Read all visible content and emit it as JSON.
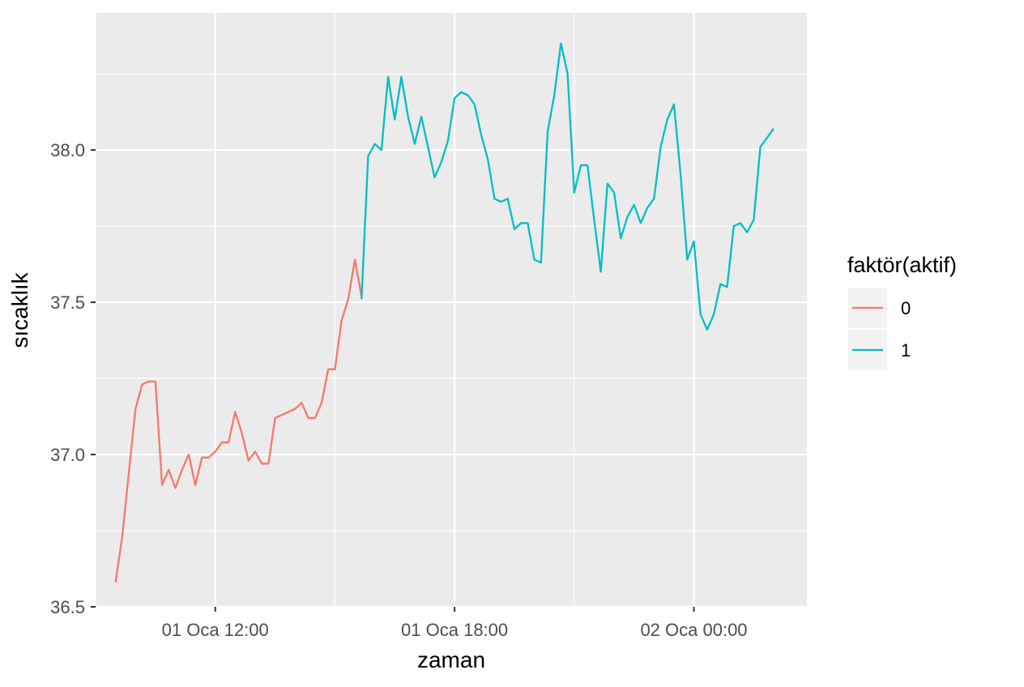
{
  "chart_data": {
    "type": "line",
    "xlabel": "zaman",
    "ylabel": "sıcaklık",
    "legend": {
      "title": "faktör(aktif)",
      "position": "right"
    },
    "grid": true,
    "x_ticks": [
      {
        "time": "01 Oca 12:00",
        "label": "01 Oca 12:00"
      },
      {
        "time": "01 Oca 18:00",
        "label": "01 Oca 18:00"
      },
      {
        "time": "02 Oca 00:00",
        "label": "02 Oca 00:00"
      }
    ],
    "xlim": [
      "01 Oca 09:00",
      "02 Oca 02:50"
    ],
    "ylim": [
      36.5,
      38.45
    ],
    "y_ticks": [
      36.5,
      37.0,
      37.5,
      38.0
    ],
    "y_tick_labels": [
      "36.5",
      "37.0",
      "37.5",
      "38.0"
    ],
    "series": [
      {
        "name": "0",
        "color": "#F8766D",
        "points": [
          [
            "01 Oca 09:30",
            36.58
          ],
          [
            "01 Oca 09:40",
            36.73
          ],
          [
            "01 Oca 09:50",
            36.94
          ],
          [
            "01 Oca 10:00",
            37.15
          ],
          [
            "01 Oca 10:10",
            37.23
          ],
          [
            "01 Oca 10:20",
            37.24
          ],
          [
            "01 Oca 10:30",
            37.24
          ],
          [
            "01 Oca 10:40",
            36.9
          ],
          [
            "01 Oca 10:50",
            36.95
          ],
          [
            "01 Oca 11:00",
            36.89
          ],
          [
            "01 Oca 11:10",
            36.95
          ],
          [
            "01 Oca 11:20",
            37.0
          ],
          [
            "01 Oca 11:30",
            36.9
          ],
          [
            "01 Oca 11:40",
            36.99
          ],
          [
            "01 Oca 11:50",
            36.99
          ],
          [
            "01 Oca 12:00",
            37.01
          ],
          [
            "01 Oca 12:10",
            37.04
          ],
          [
            "01 Oca 12:20",
            37.04
          ],
          [
            "01 Oca 12:30",
            37.14
          ],
          [
            "01 Oca 12:40",
            37.07
          ],
          [
            "01 Oca 12:50",
            36.98
          ],
          [
            "01 Oca 13:00",
            37.01
          ],
          [
            "01 Oca 13:10",
            36.97
          ],
          [
            "01 Oca 13:20",
            36.97
          ],
          [
            "01 Oca 13:30",
            37.12
          ],
          [
            "01 Oca 13:40",
            37.13
          ],
          [
            "01 Oca 13:50",
            37.14
          ],
          [
            "01 Oca 14:00",
            37.15
          ],
          [
            "01 Oca 14:10",
            37.17
          ],
          [
            "01 Oca 14:20",
            37.12
          ],
          [
            "01 Oca 14:30",
            37.12
          ],
          [
            "01 Oca 14:40",
            37.17
          ],
          [
            "01 Oca 14:50",
            37.28
          ],
          [
            "01 Oca 15:00",
            37.28
          ],
          [
            "01 Oca 15:10",
            37.44
          ],
          [
            "01 Oca 15:20",
            37.51
          ],
          [
            "01 Oca 15:30",
            37.64
          ],
          [
            "01 Oca 15:40",
            37.52
          ]
        ]
      },
      {
        "name": "1",
        "color": "#00BFC4",
        "points": [
          [
            "01 Oca 15:40",
            37.51
          ],
          [
            "01 Oca 15:50",
            37.98
          ],
          [
            "01 Oca 16:00",
            38.02
          ],
          [
            "01 Oca 16:10",
            38.0
          ],
          [
            "01 Oca 16:20",
            38.24
          ],
          [
            "01 Oca 16:30",
            38.1
          ],
          [
            "01 Oca 16:40",
            38.24
          ],
          [
            "01 Oca 16:50",
            38.11
          ],
          [
            "01 Oca 17:00",
            38.02
          ],
          [
            "01 Oca 17:10",
            38.11
          ],
          [
            "01 Oca 17:20",
            38.01
          ],
          [
            "01 Oca 17:30",
            37.91
          ],
          [
            "01 Oca 17:40",
            37.96
          ],
          [
            "01 Oca 17:50",
            38.03
          ],
          [
            "01 Oca 18:00",
            38.17
          ],
          [
            "01 Oca 18:10",
            38.19
          ],
          [
            "01 Oca 18:20",
            38.18
          ],
          [
            "01 Oca 18:30",
            38.15
          ],
          [
            "01 Oca 18:40",
            38.05
          ],
          [
            "01 Oca 18:50",
            37.97
          ],
          [
            "01 Oca 19:00",
            37.84
          ],
          [
            "01 Oca 19:10",
            37.83
          ],
          [
            "01 Oca 19:20",
            37.84
          ],
          [
            "01 Oca 19:30",
            37.74
          ],
          [
            "01 Oca 19:40",
            37.76
          ],
          [
            "01 Oca 19:50",
            37.76
          ],
          [
            "01 Oca 20:00",
            37.64
          ],
          [
            "01 Oca 20:10",
            37.63
          ],
          [
            "01 Oca 20:20",
            38.06
          ],
          [
            "01 Oca 20:30",
            38.18
          ],
          [
            "01 Oca 20:40",
            38.35
          ],
          [
            "01 Oca 20:50",
            38.25
          ],
          [
            "01 Oca 21:00",
            37.86
          ],
          [
            "01 Oca 21:10",
            37.95
          ],
          [
            "01 Oca 21:20",
            37.95
          ],
          [
            "01 Oca 21:30",
            37.77
          ],
          [
            "01 Oca 21:40",
            37.6
          ],
          [
            "01 Oca 21:50",
            37.89
          ],
          [
            "01 Oca 22:00",
            37.86
          ],
          [
            "01 Oca 22:10",
            37.71
          ],
          [
            "01 Oca 22:20",
            37.78
          ],
          [
            "01 Oca 22:30",
            37.82
          ],
          [
            "01 Oca 22:40",
            37.76
          ],
          [
            "01 Oca 22:50",
            37.81
          ],
          [
            "01 Oca 23:00",
            37.84
          ],
          [
            "01 Oca 23:10",
            38.01
          ],
          [
            "01 Oca 23:20",
            38.1
          ],
          [
            "01 Oca 23:30",
            38.15
          ],
          [
            "01 Oca 23:40",
            37.92
          ],
          [
            "01 Oca 23:50",
            37.64
          ],
          [
            "02 Oca 00:00",
            37.7
          ],
          [
            "02 Oca 00:10",
            37.46
          ],
          [
            "02 Oca 00:20",
            37.41
          ],
          [
            "02 Oca 00:30",
            37.46
          ],
          [
            "02 Oca 00:40",
            37.56
          ],
          [
            "02 Oca 00:50",
            37.55
          ],
          [
            "02 Oca 01:00",
            37.75
          ],
          [
            "02 Oca 01:10",
            37.76
          ],
          [
            "02 Oca 01:20",
            37.73
          ],
          [
            "02 Oca 01:30",
            37.77
          ],
          [
            "02 Oca 01:40",
            38.01
          ],
          [
            "02 Oca 01:50",
            38.04
          ],
          [
            "02 Oca 02:00",
            38.07
          ]
        ]
      }
    ]
  }
}
